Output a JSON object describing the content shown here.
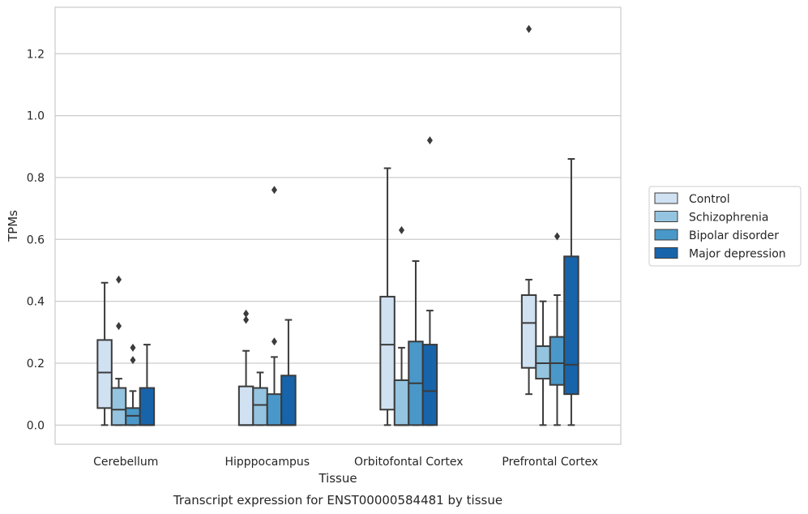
{
  "chart_data": {
    "type": "boxplot",
    "title": "",
    "caption": "Transcript expression for ENST00000584481 by tissue",
    "xlabel": "Tissue",
    "ylabel": "TPMs",
    "ylim": [
      -0.062,
      1.35
    ],
    "yticks": [
      0.0,
      0.2,
      0.4,
      0.6,
      0.8,
      1.0,
      1.2
    ],
    "ytick_labels": [
      "0.0",
      "0.2",
      "0.4",
      "0.6",
      "0.8",
      "1.0",
      "1.2"
    ],
    "grid": "horizontal",
    "legend_position": "right",
    "categories": [
      "Cerebellum",
      "Hipppocampus",
      "Orbitofontal Cortex",
      "Prefrontal Cortex"
    ],
    "series": [
      {
        "name": "Control",
        "color": "#d0e1f2",
        "boxes": [
          {
            "whislo": 0.0,
            "q1": 0.055,
            "med": 0.17,
            "q3": 0.275,
            "whishi": 0.46,
            "fliers": []
          },
          {
            "whislo": 0.0,
            "q1": 0.0,
            "med": 0.0,
            "q3": 0.125,
            "whishi": 0.24,
            "fliers": [
              0.34,
              0.36
            ]
          },
          {
            "whislo": 0.0,
            "q1": 0.05,
            "med": 0.26,
            "q3": 0.415,
            "whishi": 0.83,
            "fliers": []
          },
          {
            "whislo": 0.1,
            "q1": 0.185,
            "med": 0.33,
            "q3": 0.42,
            "whishi": 0.47,
            "fliers": [
              1.28
            ]
          }
        ]
      },
      {
        "name": "Schizophrenia",
        "color": "#94c4df",
        "boxes": [
          {
            "whislo": 0.0,
            "q1": 0.0,
            "med": 0.05,
            "q3": 0.12,
            "whishi": 0.15,
            "fliers": [
              0.32,
              0.47
            ]
          },
          {
            "whislo": 0.0,
            "q1": 0.0,
            "med": 0.065,
            "q3": 0.12,
            "whishi": 0.17,
            "fliers": []
          },
          {
            "whislo": 0.0,
            "q1": 0.0,
            "med": 0.0,
            "q3": 0.145,
            "whishi": 0.25,
            "fliers": [
              0.63
            ]
          },
          {
            "whislo": 0.0,
            "q1": 0.15,
            "med": 0.2,
            "q3": 0.255,
            "whishi": 0.4,
            "fliers": []
          }
        ]
      },
      {
        "name": "Bipolar disorder",
        "color": "#4a98c9",
        "boxes": [
          {
            "whislo": 0.0,
            "q1": 0.0,
            "med": 0.03,
            "q3": 0.055,
            "whishi": 0.11,
            "fliers": [
              0.21,
              0.25
            ]
          },
          {
            "whislo": 0.0,
            "q1": 0.0,
            "med": 0.0,
            "q3": 0.1,
            "whishi": 0.22,
            "fliers": [
              0.27,
              0.76
            ]
          },
          {
            "whislo": 0.0,
            "q1": 0.0,
            "med": 0.135,
            "q3": 0.27,
            "whishi": 0.53,
            "fliers": []
          },
          {
            "whislo": 0.0,
            "q1": 0.13,
            "med": 0.2,
            "q3": 0.285,
            "whishi": 0.42,
            "fliers": [
              0.61
            ]
          }
        ]
      },
      {
        "name": "Major depression",
        "color": "#1764ab",
        "boxes": [
          {
            "whislo": 0.0,
            "q1": 0.0,
            "med": 0.0,
            "q3": 0.12,
            "whishi": 0.26,
            "fliers": []
          },
          {
            "whislo": 0.0,
            "q1": 0.0,
            "med": 0.0,
            "q3": 0.16,
            "whishi": 0.34,
            "fliers": []
          },
          {
            "whislo": 0.0,
            "q1": 0.0,
            "med": 0.11,
            "q3": 0.26,
            "whishi": 0.37,
            "fliers": [
              0.92
            ]
          },
          {
            "whislo": 0.0,
            "q1": 0.1,
            "med": 0.195,
            "q3": 0.545,
            "whishi": 0.86,
            "fliers": []
          }
        ]
      }
    ]
  }
}
